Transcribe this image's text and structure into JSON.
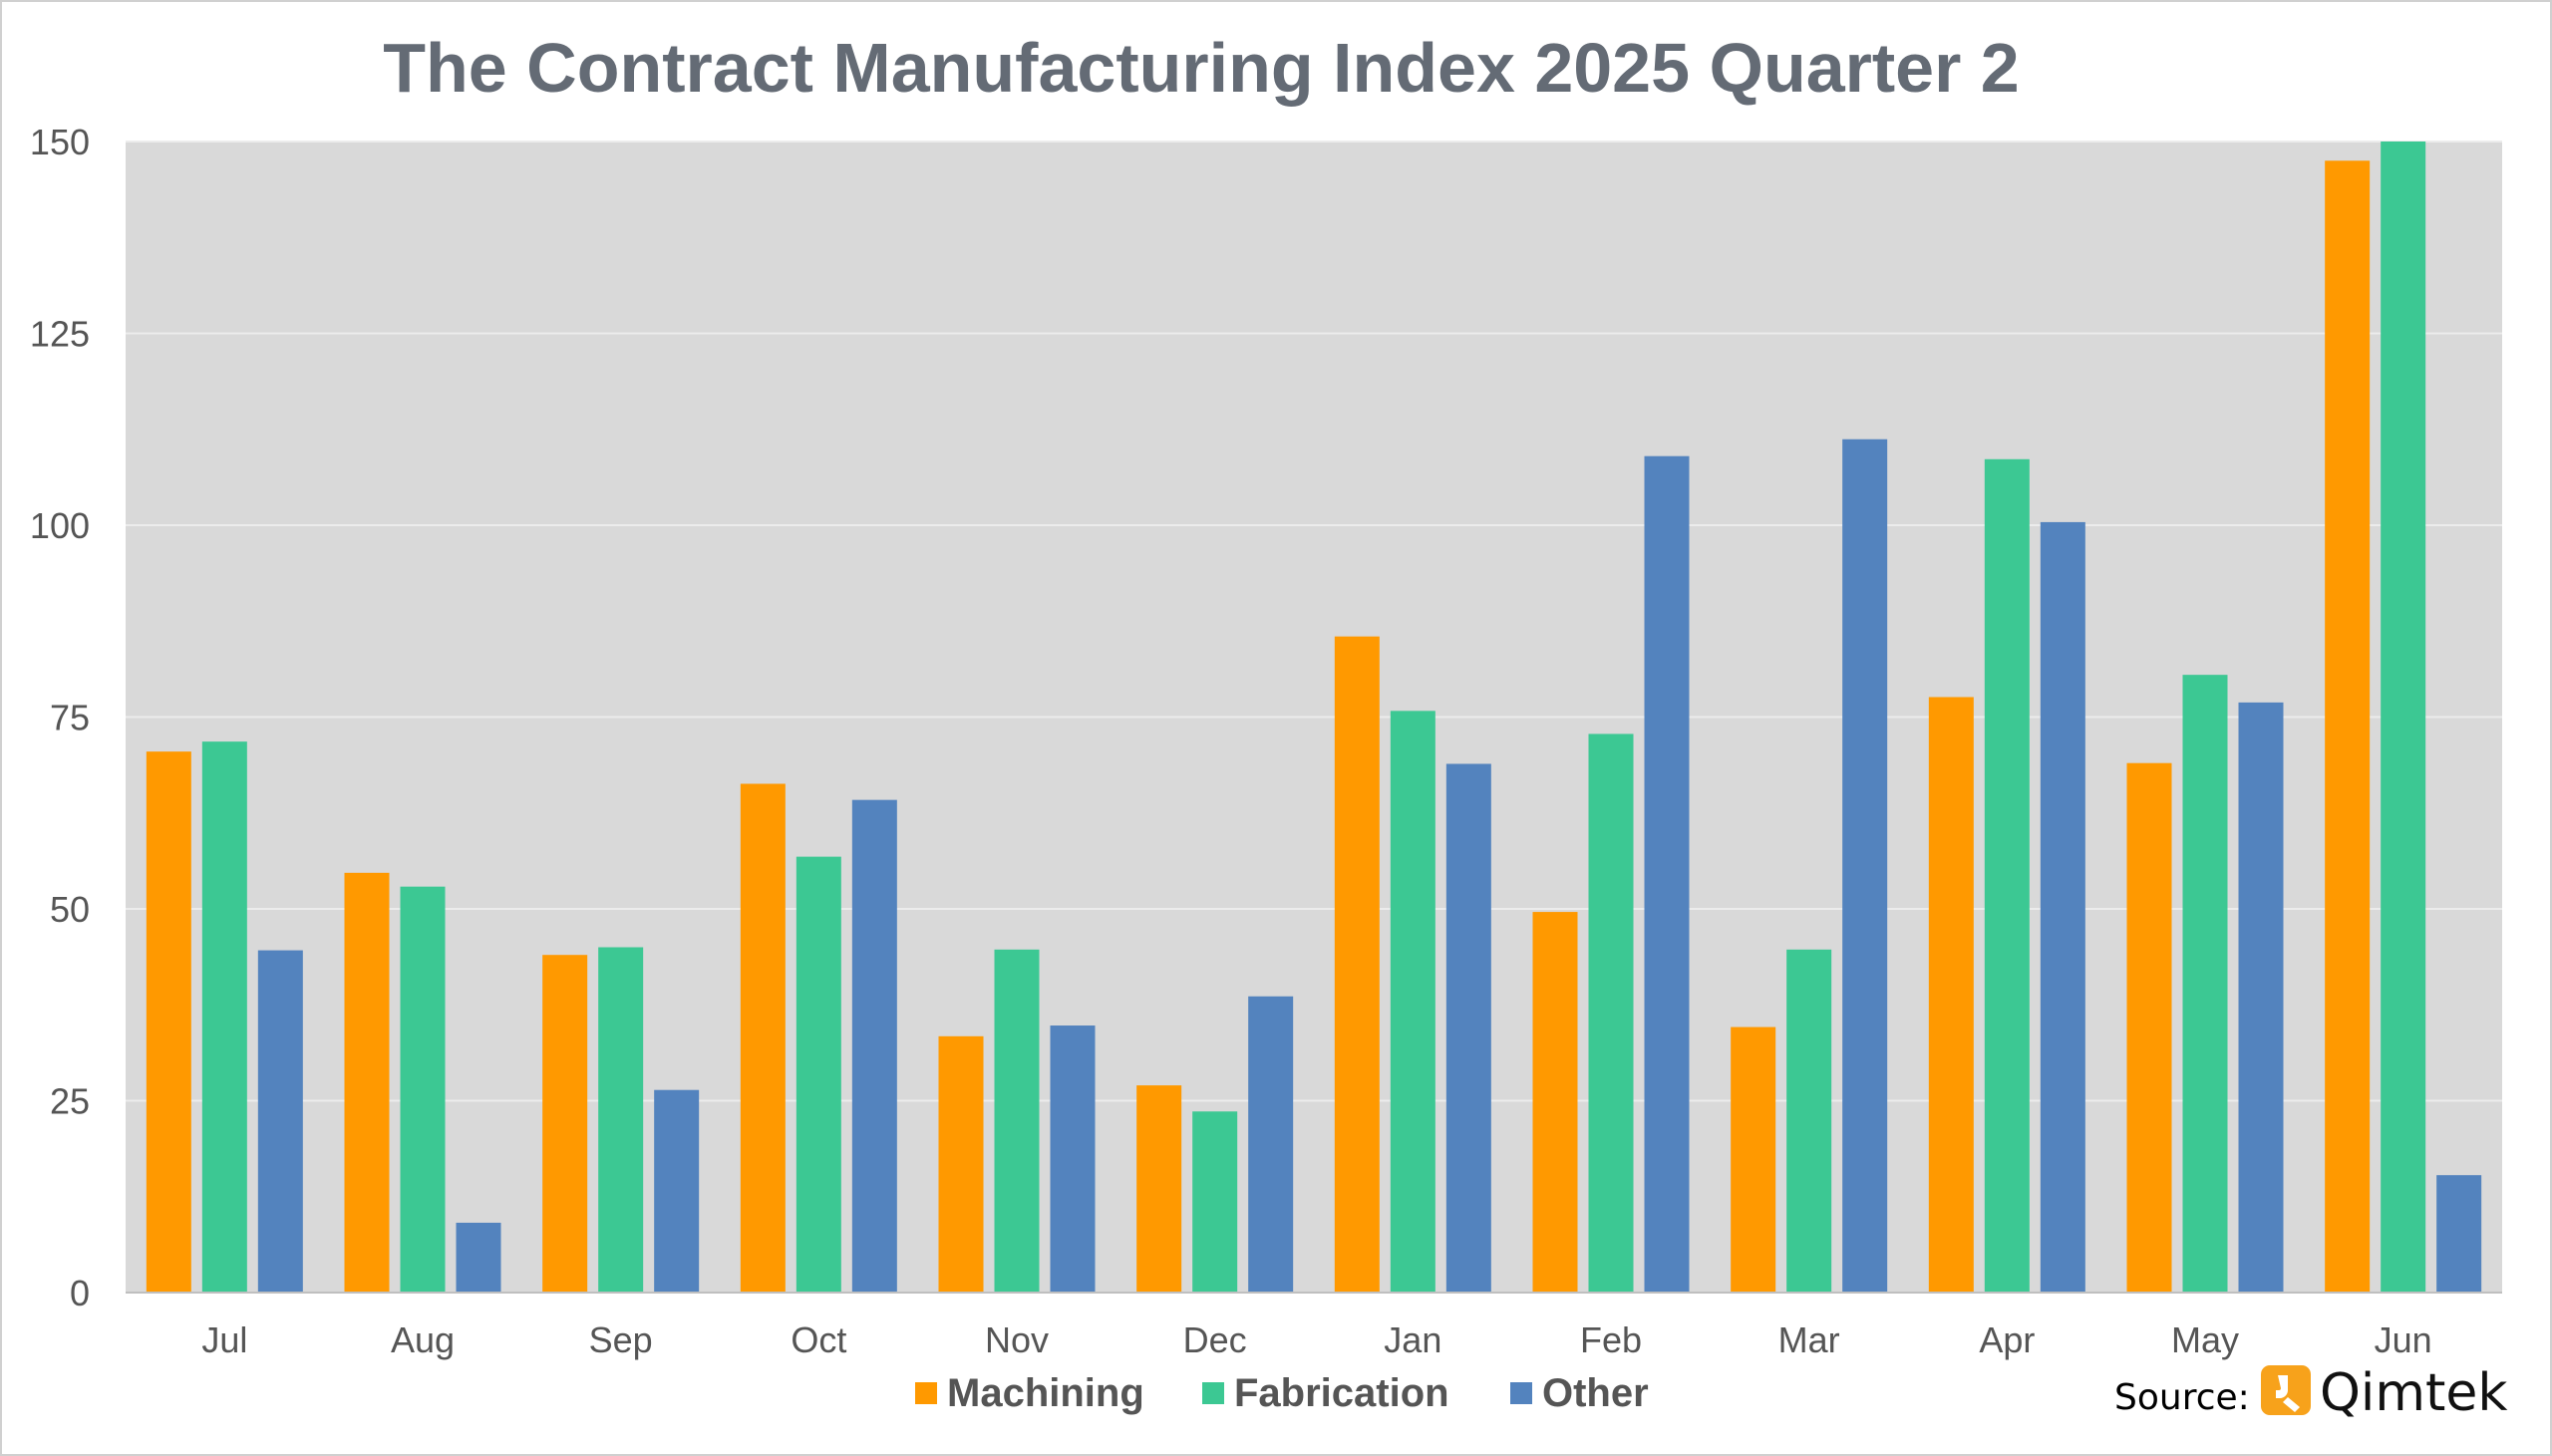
{
  "chart_data": {
    "type": "bar",
    "title": "The Contract Manufacturing Index 2025 Quarter 2",
    "categories": [
      "Jul",
      "Aug",
      "Sep",
      "Oct",
      "Nov",
      "Dec",
      "Jan",
      "Feb",
      "Mar",
      "Apr",
      "May",
      "Jun"
    ],
    "series": [
      {
        "name": "Machining",
        "color": "#ff9900",
        "values": [
          70.5,
          54.7,
          44,
          66.3,
          33.4,
          27,
          85.5,
          49.6,
          34.6,
          77.6,
          69,
          147.5
        ]
      },
      {
        "name": "Fabrication",
        "color": "#3cc893",
        "values": [
          71.8,
          52.9,
          45,
          56.8,
          44.7,
          23.6,
          75.8,
          72.8,
          44.7,
          108.6,
          80.5,
          150
        ]
      },
      {
        "name": "Other",
        "color": "#5383be",
        "values": [
          44.6,
          9.1,
          26.4,
          64.2,
          34.8,
          38.6,
          68.9,
          109,
          111.2,
          100.4,
          76.9,
          15.3
        ]
      }
    ],
    "ylim": [
      0,
      150
    ],
    "yticks": [
      0,
      25,
      50,
      75,
      100,
      125,
      150
    ],
    "grid": true,
    "legend": "bottom-center",
    "plot_background": "#d9d9d9",
    "gridline_color": "#ececec",
    "title_color": "#646b75",
    "tick_color": "#555555"
  },
  "source": {
    "label": "Source:",
    "brand": "Qimtek",
    "logo_color": "#f7a21b"
  }
}
